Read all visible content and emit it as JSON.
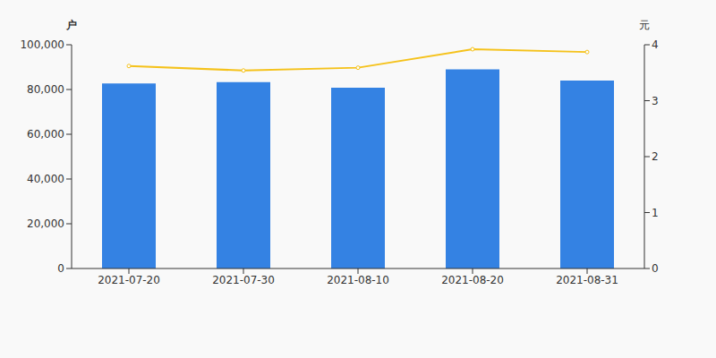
{
  "chart_data": {
    "type": "bar",
    "categories": [
      "2021-07-20",
      "2021-07-30",
      "2021-08-10",
      "2021-08-20",
      "2021-08-31"
    ],
    "y_label": "户",
    "y2_label": "元",
    "ylim": [
      0,
      100000
    ],
    "yticks": [
      0,
      {
        "value": 20000,
        "label": "20,000"
      },
      {
        "value": 40000,
        "label": "40,000"
      },
      {
        "value": 60000,
        "label": "60,000"
      },
      {
        "value": 80000,
        "label": "80,000"
      },
      {
        "value": 100000,
        "label": "100,000"
      }
    ],
    "y2lim": [
      0,
      4
    ],
    "y2ticks": [
      0,
      1,
      2,
      3,
      4
    ],
    "grid": false,
    "series": [
      {
        "type": "bar",
        "color": "#3482e3",
        "values": [
          82700,
          83300,
          80800,
          89000,
          84000
        ]
      },
      {
        "type": "line",
        "axis": "y2",
        "color": "#f5c21b",
        "marker": "circle",
        "values": [
          3.62,
          3.54,
          3.59,
          3.92,
          3.87
        ]
      }
    ]
  }
}
